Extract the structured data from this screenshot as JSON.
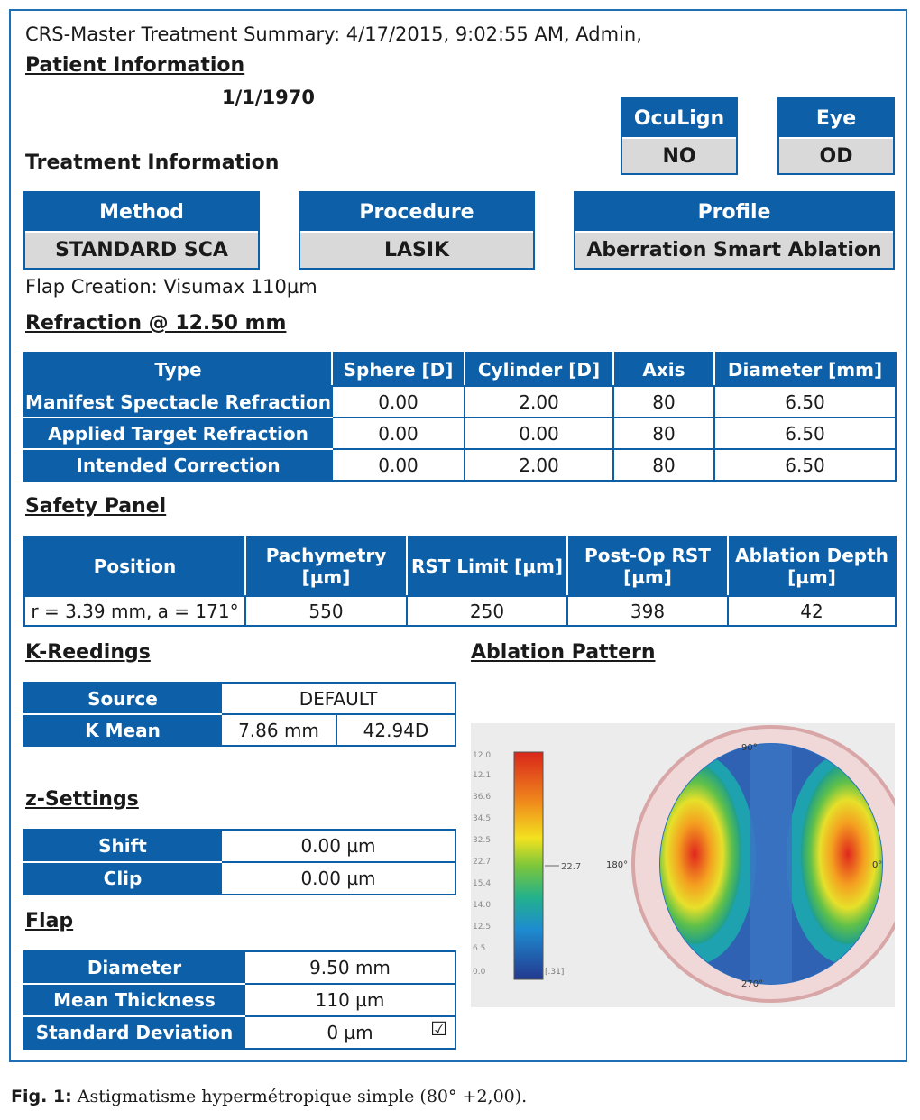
{
  "header": {
    "title": "CRS-Master Treatment Summary: 4/17/2015, 9:02:55 AM, Admin,",
    "patient_heading": "Patient Information",
    "dob": "1/1/1970"
  },
  "oculign": {
    "label": "OcuLign",
    "value": "NO"
  },
  "eye": {
    "label": "Eye",
    "value": "OD"
  },
  "treatment": {
    "heading": "Treatment Information",
    "method": {
      "label": "Method",
      "value": "STANDARD SCA"
    },
    "procedure": {
      "label": "Procedure",
      "value": "LASIK"
    },
    "profile": {
      "label": "Profile",
      "value": "Aberration Smart Ablation"
    },
    "flap_creation": "Flap Creation: Visumax 110µm"
  },
  "refraction": {
    "heading": "Refraction @ 12.50 mm",
    "columns": [
      "Type",
      "Sphere [D]",
      "Cylinder [D]",
      "Axis",
      "Diameter [mm]"
    ],
    "rows": [
      [
        "Manifest Spectacle Refraction",
        "0.00",
        "2.00",
        "80",
        "6.50"
      ],
      [
        "Applied Target Refraction",
        "0.00",
        "0.00",
        "80",
        "6.50"
      ],
      [
        "Intended Correction",
        "0.00",
        "2.00",
        "80",
        "6.50"
      ]
    ]
  },
  "safety": {
    "heading": "Safety Panel",
    "columns": [
      "Position",
      "Pachymetry [µm]",
      "RST Limit [µm]",
      "Post-Op RST [µm]",
      "Ablation Depth [µm]"
    ],
    "row": [
      "r = 3.39 mm, a = 171°",
      "550",
      "250",
      "398",
      "42"
    ]
  },
  "k_readings": {
    "heading": "K-Reedings",
    "source_label": "Source",
    "source_value": "DEFAULT",
    "kmean_label": "K Mean",
    "kmean_mm": "7.86 mm",
    "kmean_d": "42.94D"
  },
  "z_settings": {
    "heading": "z-Settings",
    "shift_label": "Shift",
    "shift_value": "0.00 µm",
    "clip_label": "Clip",
    "clip_value": "0.00 µm"
  },
  "flap": {
    "heading": "Flap",
    "diameter_label": "Diameter",
    "diameter_value": "9.50 mm",
    "thickness_label": "Mean Thickness",
    "thickness_value": "110 µm",
    "sd_label": "Standard Deviation",
    "sd_value": "0 µm",
    "sd_checked": "☑"
  },
  "ablation": {
    "heading": "Ablation Pattern",
    "marker": "22.7",
    "label_top": "90°",
    "label_left": "180°",
    "label_right": "0°",
    "label_bottom": "270°"
  },
  "caption": {
    "label": "Fig. 1:",
    "text": "Astigmatisme hypermétropique simple (80° +2,00)."
  }
}
